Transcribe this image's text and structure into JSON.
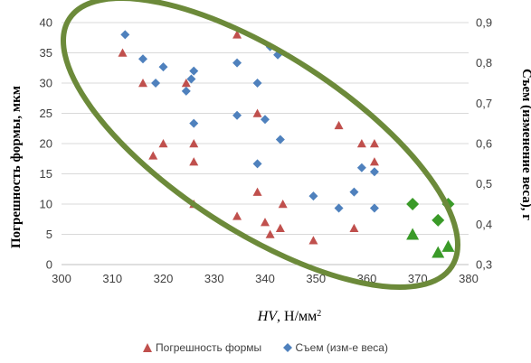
{
  "chart_data": {
    "type": "scatter",
    "xlabel_italic": "HV",
    "xlabel_rest": ", Н/мм",
    "xlabel_sup": "2",
    "ylabel": "Погрешность формы, мкм",
    "y2label": "Съем (изменение веса), г",
    "xlim": [
      300,
      380
    ],
    "ylim": [
      0,
      40
    ],
    "y2lim": [
      0.3,
      0.9
    ],
    "xticks": [
      "300",
      "310",
      "320",
      "330",
      "340",
      "350",
      "360",
      "370",
      "380"
    ],
    "yticks": [
      "0",
      "5",
      "10",
      "15",
      "20",
      "25",
      "30",
      "35",
      "40"
    ],
    "y2ticks": [
      "0,3",
      "0,4",
      "0,5",
      "0,6",
      "0,7",
      "0,8",
      "0,9"
    ],
    "series": [
      {
        "name": "Погрешность формы",
        "marker": "triangle",
        "color": "#c0504d",
        "axis": "left",
        "points": [
          [
            312,
            35
          ],
          [
            316,
            30
          ],
          [
            318,
            18
          ],
          [
            320,
            20
          ],
          [
            324.5,
            30
          ],
          [
            326,
            20
          ],
          [
            326,
            17
          ],
          [
            326,
            10
          ],
          [
            334.5,
            38
          ],
          [
            334.5,
            8
          ],
          [
            338.5,
            25
          ],
          [
            338.5,
            12
          ],
          [
            340,
            7
          ],
          [
            341,
            5
          ],
          [
            343,
            6
          ],
          [
            343.5,
            10
          ],
          [
            349.5,
            4
          ],
          [
            354.5,
            23
          ],
          [
            357.5,
            6
          ],
          [
            359,
            20
          ],
          [
            361.5,
            20
          ],
          [
            361.5,
            17
          ]
        ]
      },
      {
        "name": "Съем (изм-е веса)",
        "marker": "diamond",
        "color": "#4f81bd",
        "axis": "right",
        "points": [
          [
            312.5,
            0.87
          ],
          [
            316,
            0.81
          ],
          [
            318.5,
            0.75
          ],
          [
            320,
            0.79
          ],
          [
            324.5,
            0.73
          ],
          [
            325.5,
            0.76
          ],
          [
            326,
            0.78
          ],
          [
            326,
            0.65
          ],
          [
            334.5,
            0.8
          ],
          [
            334.5,
            0.67
          ],
          [
            338.5,
            0.75
          ],
          [
            338.5,
            0.55
          ],
          [
            340,
            0.66
          ],
          [
            341,
            0.84
          ],
          [
            342.5,
            0.82
          ],
          [
            343,
            0.61
          ],
          [
            349.5,
            0.47
          ],
          [
            354.5,
            0.44
          ],
          [
            357.5,
            0.48
          ],
          [
            359,
            0.54
          ],
          [
            361.5,
            0.53
          ],
          [
            361.5,
            0.44
          ]
        ]
      },
      {
        "name": "",
        "marker": "diamond",
        "color": "#3a9a28",
        "axis": "right",
        "points": [
          [
            369,
            0.45
          ],
          [
            374,
            0.41
          ],
          [
            376,
            0.45
          ]
        ]
      },
      {
        "name": "",
        "marker": "triangle",
        "color": "#3a9a28",
        "axis": "left",
        "points": [
          [
            369,
            5
          ],
          [
            374,
            2
          ],
          [
            376,
            3
          ]
        ]
      }
    ],
    "legend": [
      "Погрешность формы",
      "Съем (изм-е веса)"
    ],
    "legend_position": "bottom",
    "grid": true,
    "ellipse_color": "#6c8a3a"
  }
}
